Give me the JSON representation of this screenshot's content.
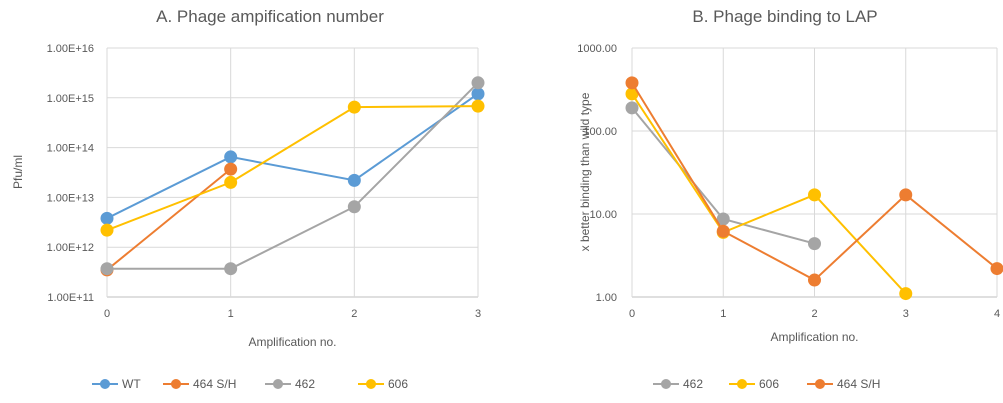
{
  "chart_data": [
    {
      "type": "line",
      "title": "A. Phage ampification number",
      "xlabel": "Amplification no.",
      "ylabel": "Pfu/ml",
      "y_scale": "log",
      "ylim": [
        100000000000,
        10000000000000000
      ],
      "y_ticks": [
        "1.00E+11",
        "1.00E+12",
        "1.00E+13",
        "1.00E+14",
        "1.00E+15",
        "1.00E+16"
      ],
      "x_ticks": [
        "0",
        "1",
        "2",
        "3"
      ],
      "xlim": [
        0,
        3
      ],
      "grid": true,
      "legend_position": "bottom",
      "series": [
        {
          "name": "WT",
          "color": "#5b9bd5",
          "x": [
            0,
            1,
            2,
            3
          ],
          "y": [
            3800000000000,
            65000000000000,
            22000000000000,
            1200000000000000
          ]
        },
        {
          "name": "464 S/H",
          "color": "#ed7d31",
          "x": [
            0,
            1
          ],
          "y": [
            350000000000,
            37000000000000
          ]
        },
        {
          "name": "462",
          "color": "#a5a5a5",
          "x": [
            0,
            1,
            2,
            3
          ],
          "y": [
            370000000000,
            370000000000,
            6500000000000,
            2000000000000000
          ]
        },
        {
          "name": "606",
          "color": "#ffc000",
          "x": [
            0,
            1,
            2,
            3
          ],
          "y": [
            2200000000000,
            20000000000000,
            650000000000000,
            680000000000000
          ]
        }
      ]
    },
    {
      "type": "line",
      "title": "B. Phage binding to LAP",
      "xlabel": "Amplification no.",
      "ylabel": "x better binding  than wild type",
      "y_scale": "log",
      "ylim": [
        1,
        1000
      ],
      "y_ticks": [
        "1.00",
        "10.00",
        "100.00",
        "1000.00"
      ],
      "x_ticks": [
        "0",
        "1",
        "2",
        "3",
        "4"
      ],
      "xlim": [
        0,
        4
      ],
      "grid": true,
      "legend_position": "bottom",
      "series": [
        {
          "name": "462",
          "color": "#a5a5a5",
          "x": [
            0,
            1,
            2
          ],
          "y": [
            190,
            8.7,
            4.4
          ]
        },
        {
          "name": "606",
          "color": "#ffc000",
          "x": [
            0,
            1,
            2,
            3
          ],
          "y": [
            280,
            6.0,
            17,
            1.1
          ]
        },
        {
          "name": "464 S/H",
          "color": "#ed7d31",
          "x": [
            0,
            1,
            2,
            3,
            4
          ],
          "y": [
            380,
            6.2,
            1.6,
            17,
            2.2
          ]
        }
      ]
    }
  ]
}
